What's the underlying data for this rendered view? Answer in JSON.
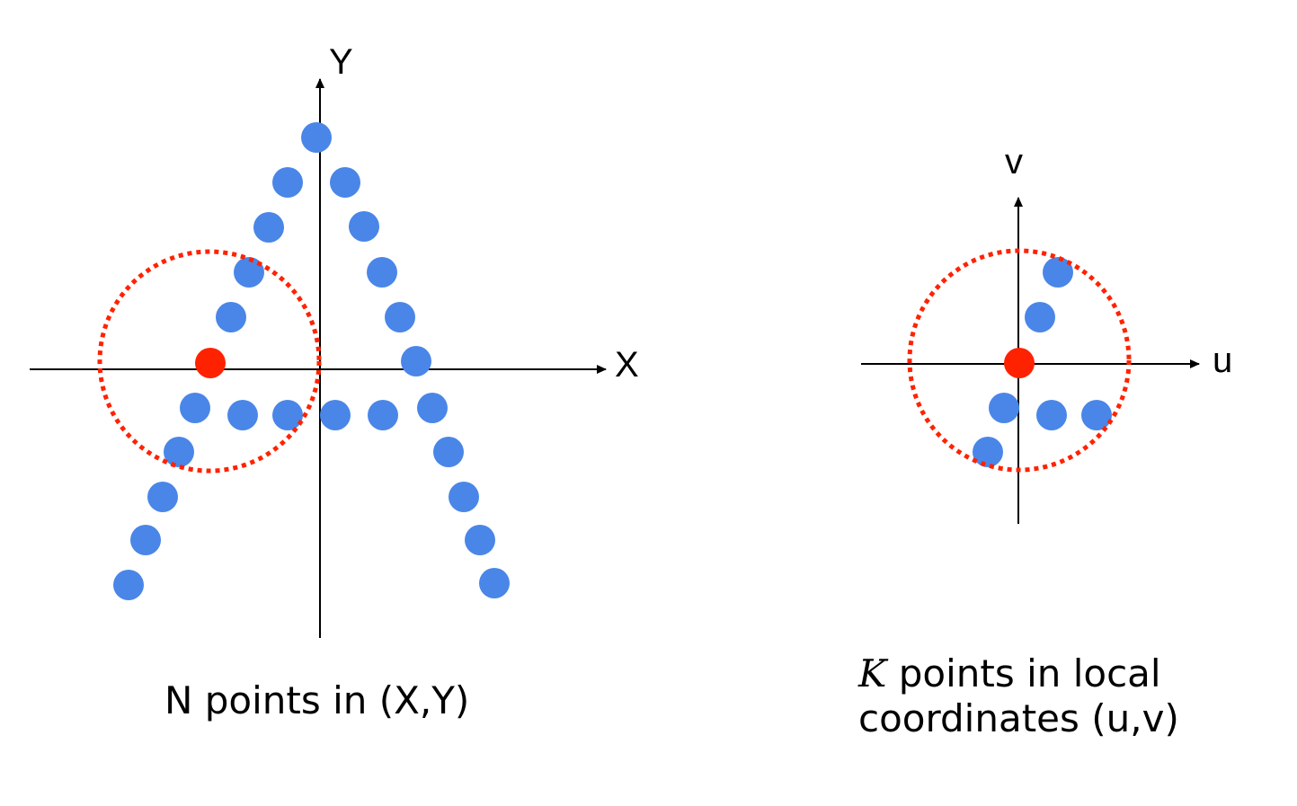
{
  "colors": {
    "point": "#4a86e8",
    "center": "#ff2200",
    "neighborhood": "#ff2200",
    "axis": "#000000"
  },
  "global_panel": {
    "x_axis_label": "X",
    "y_axis_label": "Y",
    "caption": "N points in (X,Y)"
  },
  "local_panel": {
    "u_axis_label": "u",
    "v_axis_label": "v",
    "caption_var": "K",
    "caption_line1_rest": " points in local",
    "caption_line2": "coordinates (u,v)"
  }
}
